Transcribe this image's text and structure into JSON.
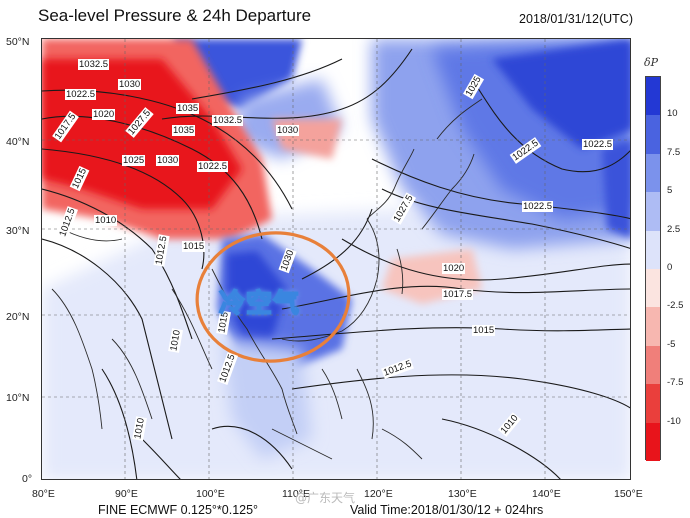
{
  "header": {
    "title": "Sea-level Pressure & 24h Departure",
    "datetime": "2018/01/31/12(UTC)"
  },
  "map": {
    "lat_labels": [
      "50°N",
      "40°N",
      "30°N",
      "20°N",
      "10°N",
      "0°"
    ],
    "lon_labels": [
      "80°E",
      "90°E",
      "100°E",
      "110°E",
      "120°E",
      "130°E",
      "140°E",
      "150°E"
    ],
    "annotation": "冷空气",
    "isobar_labels": [
      "1032.5",
      "1030",
      "1022.5",
      "1020",
      "1017.5",
      "1035",
      "1032.5",
      "1027.5",
      "1030",
      "1035",
      "1025",
      "1030",
      "1022.5",
      "1015",
      "1010",
      "1012.5",
      "1015",
      "1012.5",
      "1030",
      "1025",
      "1022.5",
      "1027.5",
      "1022.5",
      "1020",
      "1017.5",
      "1015",
      "1012.5",
      "1010",
      "1010",
      "1015",
      "1022.5",
      "1010",
      "1012.5"
    ],
    "colors": {
      "warm_strong": "#e8141b",
      "cold_strong": "#2f46d6",
      "circle": "#e8803a"
    }
  },
  "legend": {
    "title": "δP",
    "labels": [
      "10",
      "7.5",
      "5",
      "2.5",
      "0",
      "-2.5",
      "-5",
      "-7.5",
      "-10"
    ],
    "colors": [
      "#2338d4",
      "#4a63e0",
      "#7b92ec",
      "#aebcf4",
      "#dde3fa",
      "#fbe4e0",
      "#f7b7b0",
      "#f07f7a",
      "#ea3f3c",
      "#e8141b"
    ]
  },
  "footer": {
    "model": "FINE ECMWF 0.125°*0.125°",
    "valid_time": "Valid Time:2018/01/30/12 + 024hrs",
    "watermark": "@广东天气"
  }
}
